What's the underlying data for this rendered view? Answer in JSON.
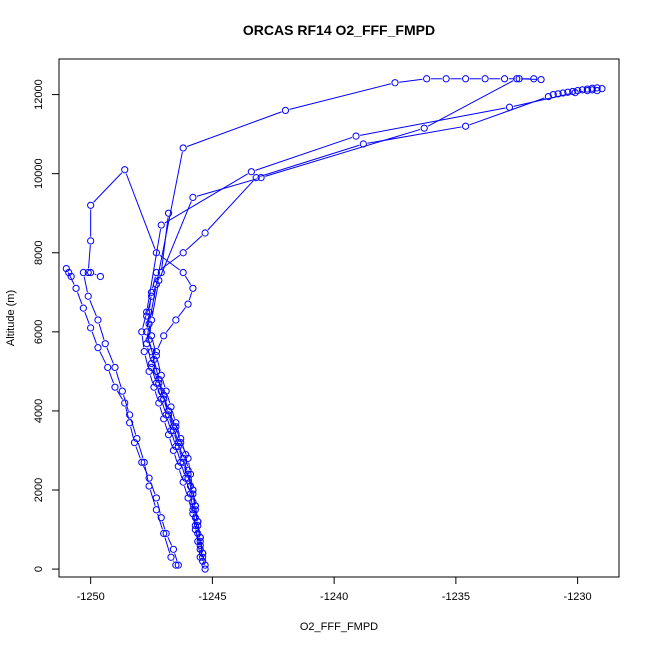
{
  "chart_data": {
    "type": "scatter",
    "title": "ORCAS RF14 O2_FFF_FMPD",
    "xlabel": "O2_FFF_FMPD",
    "ylabel": "Altitude (m)",
    "xlim": [
      -1251.3,
      -1228.3
    ],
    "ylim": [
      -200,
      12900
    ],
    "xticks": [
      -1250,
      -1245,
      -1240,
      -1235,
      -1230
    ],
    "yticks": [
      0,
      2000,
      4000,
      6000,
      8000,
      10000,
      12000
    ],
    "grid": false,
    "legend": "none",
    "marker": "open-circle",
    "color": "#0000ff",
    "series": [
      {
        "x": [
          -1245.3,
          -1245.4,
          -1245.5,
          -1245.6,
          -1245.7,
          -1245.8,
          -1245.9,
          -1246.0,
          -1246.3,
          -1246.5,
          -1246.8,
          -1247.1,
          -1247.3,
          -1247.5,
          -1247.7,
          -1247.6,
          -1247.5,
          -1247.3,
          -1246.2,
          -1245.3,
          -1243.2,
          -1238.8,
          -1234.6,
          -1231.2,
          -1231.0,
          -1230.8,
          -1230.6,
          -1230.4,
          -1230.2,
          -1230.0,
          -1229.8,
          -1229.6,
          -1229.4,
          -1229.2,
          -1229.0
        ],
        "y": [
          100,
          400,
          800,
          1200,
          1600,
          2000,
          2400,
          2800,
          3200,
          3600,
          4000,
          4500,
          5000,
          5500,
          6000,
          6500,
          7000,
          7500,
          8000,
          8500,
          9900,
          10750,
          11200,
          11950,
          12000,
          12020,
          12040,
          12060,
          12080,
          12100,
          12120,
          12140,
          12160,
          12170,
          12150
        ]
      },
      {
        "x": [
          -1245.4,
          -1245.5,
          -1245.7,
          -1245.8,
          -1246.0,
          -1246.2,
          -1246.4,
          -1246.6,
          -1246.8,
          -1247.0,
          -1247.2,
          -1247.4,
          -1247.6,
          -1247.8,
          -1247.9,
          -1247.7,
          -1247.1,
          -1243.4,
          -1239.1,
          -1232.8,
          -1230.1,
          -1229.6,
          -1229.4,
          -1229.2
        ],
        "y": [
          200,
          600,
          1000,
          1400,
          1800,
          2200,
          2600,
          3000,
          3400,
          3800,
          4200,
          4600,
          5000,
          5500,
          6000,
          6500,
          8700,
          10050,
          10950,
          11680,
          12050,
          12100,
          12120,
          12100
        ]
      },
      {
        "x": [
          -1246.4,
          -1246.6,
          -1246.9,
          -1247.1,
          -1247.3,
          -1247.6,
          -1247.9,
          -1248.2,
          -1248.4,
          -1248.6,
          -1249.0,
          -1249.3,
          -1249.7,
          -1250.0,
          -1250.3,
          -1250.6,
          -1251.0,
          -1250.9,
          -1250.8
        ],
        "y": [
          100,
          500,
          900,
          1300,
          1800,
          2300,
          2700,
          3200,
          3700,
          4200,
          4600,
          5100,
          5600,
          6100,
          6600,
          7100,
          7600,
          7500,
          7400
        ]
      },
      {
        "x": [
          -1246.5,
          -1246.7,
          -1247.0,
          -1247.3,
          -1247.6,
          -1247.8,
          -1248.1,
          -1248.4,
          -1248.7,
          -1249.0,
          -1249.4,
          -1249.7,
          -1250.1,
          -1250.3,
          -1250.0,
          -1249.6
        ],
        "y": [
          100,
          300,
          900,
          1500,
          2100,
          2700,
          3300,
          3900,
          4500,
          5100,
          5700,
          6300,
          6900,
          7500,
          7500,
          7400
        ]
      },
      {
        "x": [
          -1245.5,
          -1245.6,
          -1245.7,
          -1245.8,
          -1245.9,
          -1246.1,
          -1246.3,
          -1246.5,
          -1246.7,
          -1246.9,
          -1247.1,
          -1247.3,
          -1247.5,
          -1247.3,
          -1247.0,
          -1246.5,
          -1246.0,
          -1245.8,
          -1246.2,
          -1247.3,
          -1248.6,
          -1250.0,
          -1250.0,
          -1250.1
        ],
        "y": [
          300,
          700,
          1100,
          1500,
          1900,
          2300,
          2700,
          3100,
          3500,
          3900,
          4300,
          4700,
          5100,
          5500,
          5900,
          6300,
          6700,
          7100,
          7500,
          8000,
          10100,
          9200,
          8300,
          7500
        ]
      },
      {
        "x": [
          -1245.3,
          -1245.4,
          -1245.5,
          -1245.6,
          -1245.7,
          -1245.8,
          -1246.0,
          -1246.2,
          -1246.4,
          -1246.6,
          -1246.8,
          -1247.0,
          -1247.2,
          -1247.5,
          -1247.7,
          -1247.6,
          -1247.3,
          -1246.2,
          -1242.0,
          -1237.5,
          -1236.2,
          -1235.4,
          -1234.6,
          -1233.8,
          -1233.0,
          -1232.4,
          -1231.8
        ],
        "y": [
          0,
          300,
          700,
          1100,
          1500,
          1900,
          2300,
          2700,
          3100,
          3500,
          3900,
          4300,
          4700,
          5200,
          5700,
          6200,
          7200,
          10650,
          11600,
          12300,
          12400,
          12400,
          12400,
          12400,
          12400,
          12400,
          12400
        ]
      },
      {
        "x": [
          -1245.4,
          -1245.5,
          -1245.6,
          -1245.7,
          -1245.8,
          -1246.0,
          -1246.2,
          -1246.4,
          -1246.6,
          -1246.8,
          -1247.0,
          -1247.2,
          -1247.4,
          -1247.6,
          -1247.5,
          -1247.2,
          -1245.8,
          -1243.0,
          -1236.3,
          -1232.5,
          -1231.5
        ],
        "y": [
          400,
          800,
          1200,
          1600,
          2000,
          2400,
          2800,
          3200,
          3600,
          4000,
          4400,
          4800,
          5300,
          5800,
          6300,
          7300,
          9400,
          9900,
          11150,
          12400,
          12380
        ]
      },
      {
        "x": [
          -1245.5,
          -1245.6,
          -1245.7,
          -1245.8,
          -1245.9,
          -1246.0,
          -1246.1,
          -1246.3,
          -1246.5,
          -1246.7,
          -1246.9,
          -1247.1,
          -1247.3,
          -1247.5,
          -1247.7,
          -1247.5,
          -1247.1,
          -1246.8
        ],
        "y": [
          500,
          900,
          1300,
          1700,
          2100,
          2500,
          2900,
          3300,
          3700,
          4100,
          4500,
          4900,
          5400,
          5900,
          6400,
          6900,
          7500,
          9000
        ]
      }
    ]
  }
}
